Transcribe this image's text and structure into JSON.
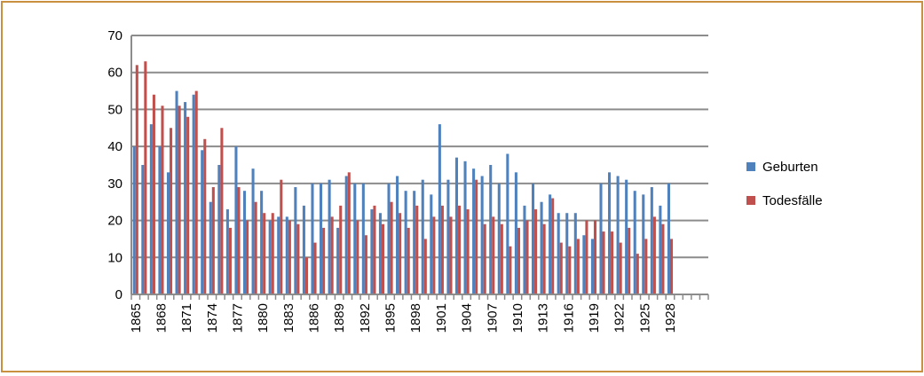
{
  "chart_data": {
    "type": "bar",
    "title": "",
    "xlabel": "",
    "ylabel": "",
    "ylim": [
      0,
      70
    ],
    "yticks": [
      0,
      10,
      20,
      30,
      40,
      50,
      60,
      70
    ],
    "grid": true,
    "legend_position": "right",
    "categories": [
      "1865",
      "1866",
      "1867",
      "1868",
      "1869",
      "1870",
      "1871",
      "1872",
      "1873",
      "1874",
      "1875",
      "1876",
      "1877",
      "1878",
      "1879",
      "1880",
      "1881",
      "1882",
      "1883",
      "1884",
      "1885",
      "1886",
      "1887",
      "1888",
      "1889",
      "1890",
      "1891",
      "1892",
      "1893",
      "1894",
      "1895",
      "1896",
      "1897",
      "1898",
      "1899",
      "1900",
      "1901",
      "1902",
      "1903",
      "1904",
      "1905",
      "1906",
      "1907",
      "1908",
      "1909",
      "1910",
      "1911",
      "1912",
      "1913",
      "1914",
      "1915",
      "1916",
      "1917",
      "1918",
      "1919",
      "1920",
      "1921",
      "1922",
      "1923",
      "1924",
      "1925",
      "1926",
      "1927",
      "1928",
      "",
      "",
      "",
      ""
    ],
    "label_every": 3,
    "series": [
      {
        "name": "Geburten",
        "color": "#4f81bd",
        "values": [
          40,
          35,
          46,
          40,
          33,
          55,
          52,
          54,
          39,
          25,
          35,
          23,
          40,
          28,
          34,
          28,
          20,
          21,
          21,
          29,
          24,
          30,
          30,
          31,
          18,
          32,
          30,
          30,
          23,
          22,
          30,
          32,
          28,
          28,
          31,
          27,
          46,
          31,
          37,
          36,
          34,
          32,
          35,
          30,
          38,
          33,
          24,
          30,
          25,
          27,
          22,
          22,
          22,
          16,
          15,
          30,
          33,
          32,
          31,
          28,
          27,
          29,
          24,
          30,
          null,
          null,
          null,
          null
        ]
      },
      {
        "name": "Todesfälle",
        "color": "#c0504d",
        "values": [
          62,
          63,
          54,
          51,
          45,
          51,
          48,
          55,
          42,
          29,
          45,
          18,
          29,
          20,
          25,
          22,
          22,
          31,
          20,
          19,
          10,
          14,
          18,
          21,
          24,
          33,
          20,
          16,
          24,
          19,
          25,
          22,
          18,
          24,
          15,
          21,
          24,
          21,
          24,
          23,
          31,
          19,
          21,
          19,
          13,
          18,
          20,
          23,
          19,
          26,
          14,
          13,
          15,
          20,
          20,
          17,
          17,
          14,
          18,
          11,
          15,
          21,
          19,
          15,
          null,
          null,
          null,
          null
        ]
      }
    ]
  }
}
